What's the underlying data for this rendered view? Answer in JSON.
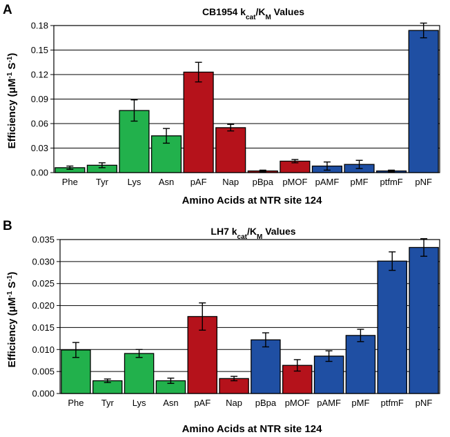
{
  "colors": {
    "green": "#22b14c",
    "red": "#b5121b",
    "blue": "#1f4fa3",
    "grid": "#000000",
    "bar_edge": "#000000"
  },
  "chart_data": [
    {
      "panel_label": "A",
      "type": "bar",
      "title": "CB1954 k",
      "title_sub1": "cat",
      "title_mid": "/K",
      "title_sub2": "M",
      "title_tail": " Values",
      "ylabel_pre": "Efficiency (",
      "ylabel_mu": "μM",
      "ylabel_sup1": "-1",
      "ylabel_s": " S",
      "ylabel_sup2": "-1",
      "ylabel_post": ")",
      "xlabel": "Amino Acids at NTR site 124",
      "ylim": [
        0,
        0.18
      ],
      "yticks": [
        "0.00",
        "0.03",
        "0.06",
        "0.09",
        "0.12",
        "0.15",
        "0.18"
      ],
      "grid": true,
      "categories": [
        "Phe",
        "Tyr",
        "Lys",
        "Asn",
        "pAF",
        "Nap",
        "pBpa",
        "pMOF",
        "pAMF",
        "pMF",
        "ptfmF",
        "pNF"
      ],
      "values": [
        0.006,
        0.009,
        0.076,
        0.045,
        0.123,
        0.055,
        0.002,
        0.014,
        0.008,
        0.01,
        0.002,
        0.174
      ],
      "errors": [
        0.002,
        0.003,
        0.013,
        0.009,
        0.012,
        0.004,
        0.001,
        0.002,
        0.005,
        0.005,
        0.001,
        0.009
      ],
      "bar_colors": [
        "green",
        "green",
        "green",
        "green",
        "red",
        "red",
        "red",
        "red",
        "blue",
        "blue",
        "blue",
        "blue"
      ]
    },
    {
      "panel_label": "B",
      "type": "bar",
      "title": "LH7 k",
      "title_sub1": "cat",
      "title_mid": "/K",
      "title_sub2": "M",
      "title_tail": " Values",
      "ylabel_pre": "Efficiency (",
      "ylabel_mu": "μM",
      "ylabel_sup1": "-1",
      "ylabel_s": " S",
      "ylabel_sup2": "-1",
      "ylabel_post": ")",
      "xlabel": "Amino Acids at NTR site 124",
      "ylim": [
        0,
        0.035
      ],
      "yticks": [
        "0.000",
        "0.005",
        "0.010",
        "0.015",
        "0.020",
        "0.025",
        "0.030",
        "0.035"
      ],
      "grid": true,
      "categories": [
        "Phe",
        "Tyr",
        "Lys",
        "Asn",
        "pAF",
        "Nap",
        "pBpa",
        "pMOF",
        "pAMF",
        "pMF",
        "ptfmF",
        "pNF"
      ],
      "values": [
        0.0099,
        0.0029,
        0.0091,
        0.0029,
        0.0175,
        0.0034,
        0.0122,
        0.0064,
        0.0085,
        0.0132,
        0.0301,
        0.0332
      ],
      "errors": [
        0.0017,
        0.0004,
        0.0009,
        0.0006,
        0.0031,
        0.0005,
        0.0016,
        0.0013,
        0.0012,
        0.0014,
        0.0021,
        0.002
      ],
      "bar_colors": [
        "green",
        "green",
        "green",
        "green",
        "red",
        "red",
        "blue",
        "red",
        "blue",
        "blue",
        "blue",
        "blue"
      ]
    }
  ]
}
